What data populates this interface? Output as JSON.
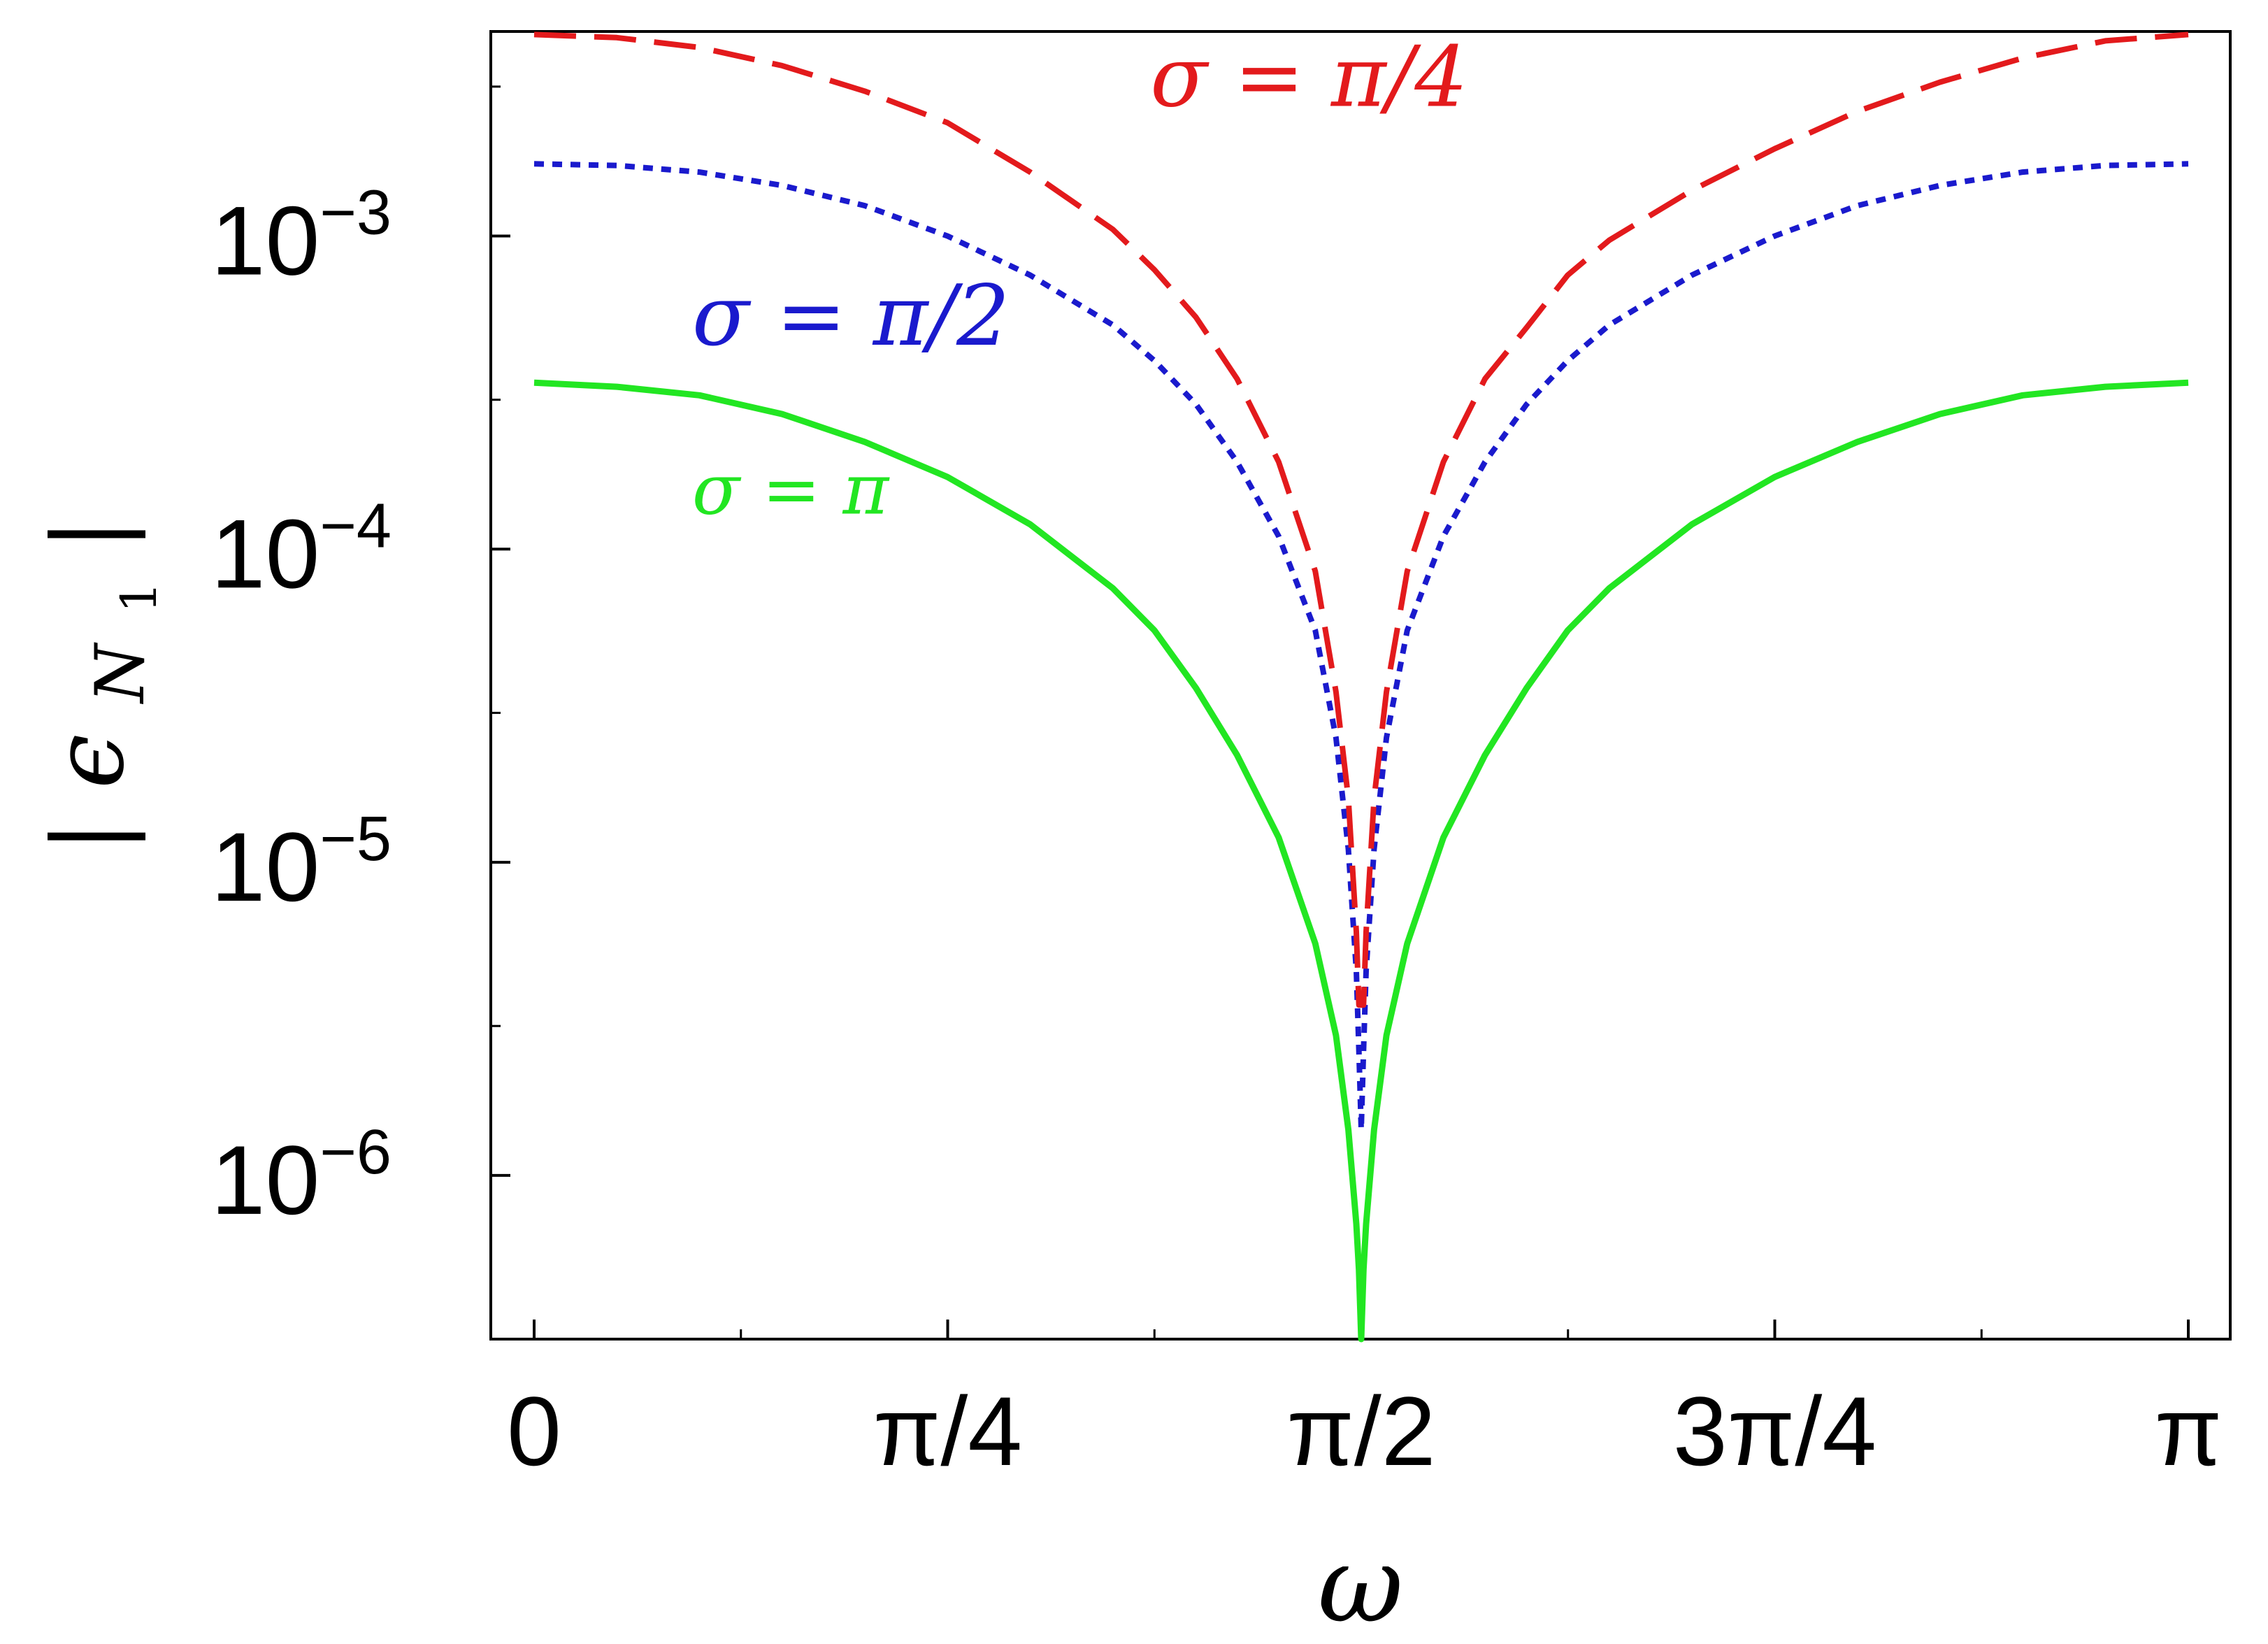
{
  "chart_data": {
    "type": "line",
    "title": "",
    "xlabel": "ω",
    "ylabel": "|ε_N1|",
    "ylabel_parts": {
      "outer": "|",
      "symbol": "ϵ",
      "subscript": "N",
      "subsubscript": "1"
    },
    "x_scale": "linear",
    "y_scale": "log",
    "xlim": [
      0,
      3.14159
    ],
    "ylim": [
      3e-07,
      0.0045
    ],
    "grid": false,
    "legend": "none",
    "x_ticks": [
      {
        "value": 0,
        "label": "0"
      },
      {
        "value": 0.7854,
        "label": "π/4"
      },
      {
        "value": 1.5708,
        "label": "π/2"
      },
      {
        "value": 2.3562,
        "label": "3π/4"
      },
      {
        "value": 3.14159,
        "label": "π"
      }
    ],
    "y_ticks": [
      {
        "value": 0.001,
        "base": "10",
        "exp": "−3"
      },
      {
        "value": 0.0001,
        "base": "10",
        "exp": "−4"
      },
      {
        "value": 1e-05,
        "base": "10",
        "exp": "−5"
      },
      {
        "value": 1e-06,
        "base": "10",
        "exp": "−6"
      }
    ],
    "x_minor_ticks": [
      0.3927,
      1.1781,
      1.9635,
      2.7489
    ],
    "y_minor_ticks": [
      0.003,
      0.0003,
      3e-05,
      3e-06
    ],
    "series": [
      {
        "name": "σ = π/4",
        "color": "#e31a1c",
        "dash": "dashed",
        "label_at": [
          1.17,
          0.0026
        ],
        "points": [
          [
            0,
            0.0044
          ],
          [
            0.157,
            0.0043
          ],
          [
            0.314,
            0.004
          ],
          [
            0.471,
            0.0035
          ],
          [
            0.628,
            0.0029
          ],
          [
            0.785,
            0.0023
          ],
          [
            0.942,
            0.0016
          ],
          [
            1.099,
            0.00105
          ],
          [
            1.178,
            0.00078
          ],
          [
            1.257,
            0.00055
          ],
          [
            1.335,
            0.00035
          ],
          [
            1.414,
            0.00019
          ],
          [
            1.4835,
            8.5e-05
          ],
          [
            1.5229,
            3.5e-05
          ],
          [
            1.5464,
            1.6e-05
          ],
          [
            1.5615,
            6e-06
          ],
          [
            1.5664,
            3.5e-06
          ],
          [
            1.5752,
            3.5e-06
          ],
          [
            1.5801,
            6e-06
          ],
          [
            1.5952,
            1.6e-05
          ],
          [
            1.6187,
            3.5e-05
          ],
          [
            1.6581,
            8.5e-05
          ],
          [
            1.727,
            0.00019
          ],
          [
            1.806,
            0.00035
          ],
          [
            1.885,
            0.00051
          ],
          [
            1.963,
            0.00075
          ],
          [
            2.042,
            0.00097
          ],
          [
            2.199,
            0.0014
          ],
          [
            2.356,
            0.0019
          ],
          [
            2.513,
            0.0025
          ],
          [
            2.67,
            0.0031
          ],
          [
            2.827,
            0.0037
          ],
          [
            2.984,
            0.0042
          ],
          [
            3.14159,
            0.0044
          ]
        ]
      },
      {
        "name": "σ = π/2",
        "color": "#1a1acd",
        "dash": "dotted",
        "label_at": [
          0.3,
          0.00045
        ],
        "points": [
          [
            0,
            0.0017
          ],
          [
            0.157,
            0.00168
          ],
          [
            0.314,
            0.0016
          ],
          [
            0.471,
            0.00145
          ],
          [
            0.628,
            0.00125
          ],
          [
            0.785,
            0.001
          ],
          [
            0.942,
            0.00075
          ],
          [
            1.099,
            0.00052
          ],
          [
            1.178,
            0.0004
          ],
          [
            1.257,
            0.00029
          ],
          [
            1.335,
            0.00019
          ],
          [
            1.414,
            0.00011
          ],
          [
            1.4835,
            5.5e-05
          ],
          [
            1.5229,
            2.5e-05
          ],
          [
            1.5464,
            1.1e-05
          ],
          [
            1.5615,
            4.5e-06
          ],
          [
            1.5664,
            2.5e-06
          ],
          [
            1.5708,
            1.4e-06
          ],
          [
            1.5752,
            2.5e-06
          ],
          [
            1.5801,
            4.5e-06
          ],
          [
            1.5952,
            1.1e-05
          ],
          [
            1.6187,
            2.5e-05
          ],
          [
            1.6581,
            5.5e-05
          ],
          [
            1.727,
            0.00011
          ],
          [
            1.806,
            0.00019
          ],
          [
            1.885,
            0.00029
          ],
          [
            1.963,
            0.0004
          ],
          [
            2.042,
            0.00052
          ],
          [
            2.199,
            0.00075
          ],
          [
            2.356,
            0.001
          ],
          [
            2.513,
            0.00125
          ],
          [
            2.67,
            0.00145
          ],
          [
            2.827,
            0.0016
          ],
          [
            2.984,
            0.00168
          ],
          [
            3.14159,
            0.0017
          ]
        ]
      },
      {
        "name": "σ = π",
        "color": "#22e622",
        "dash": "solid",
        "label_at": [
          0.3,
          0.00013
        ],
        "points": [
          [
            0,
            0.00034
          ],
          [
            0.157,
            0.00033
          ],
          [
            0.314,
            0.00031
          ],
          [
            0.471,
            0.00027
          ],
          [
            0.628,
            0.00022
          ],
          [
            0.785,
            0.00017
          ],
          [
            0.942,
            0.00012
          ],
          [
            1.099,
            7.5e-05
          ],
          [
            1.178,
            5.5e-05
          ],
          [
            1.257,
            3.6e-05
          ],
          [
            1.335,
            2.2e-05
          ],
          [
            1.414,
            1.2e-05
          ],
          [
            1.4835,
            5.5e-06
          ],
          [
            1.5229,
            2.8e-06
          ],
          [
            1.5464,
            1.4e-06
          ],
          [
            1.5615,
            7e-07
          ],
          [
            1.5664,
            5e-07
          ],
          [
            1.5708,
            3e-07
          ],
          [
            1.5752,
            5e-07
          ],
          [
            1.5801,
            7e-07
          ],
          [
            1.5952,
            1.4e-06
          ],
          [
            1.6187,
            2.8e-06
          ],
          [
            1.6581,
            5.5e-06
          ],
          [
            1.727,
            1.2e-05
          ],
          [
            1.806,
            2.2e-05
          ],
          [
            1.885,
            3.6e-05
          ],
          [
            1.963,
            5.5e-05
          ],
          [
            2.042,
            7.5e-05
          ],
          [
            2.199,
            0.00012
          ],
          [
            2.356,
            0.00017
          ],
          [
            2.513,
            0.00022
          ],
          [
            2.67,
            0.00027
          ],
          [
            2.827,
            0.00031
          ],
          [
            2.984,
            0.00033
          ],
          [
            3.14159,
            0.00034
          ]
        ]
      }
    ]
  }
}
